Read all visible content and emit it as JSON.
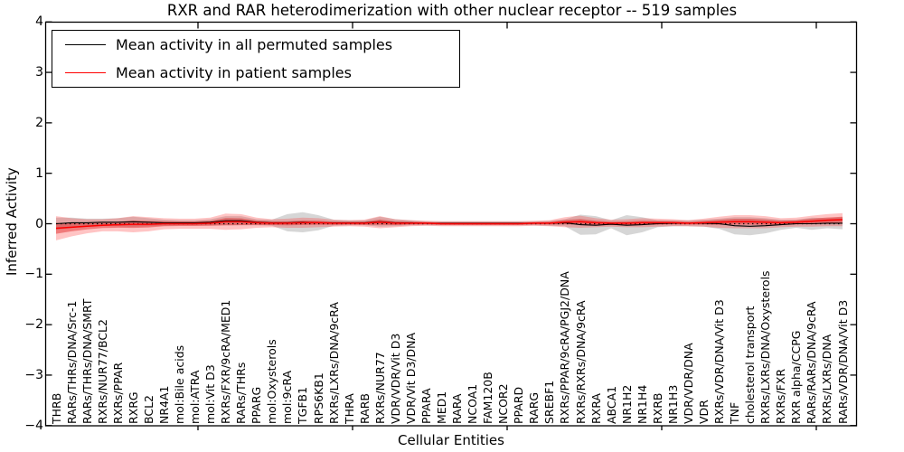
{
  "title": "RXR and RAR heterodimerization with other nuclear receptor -- 519 samples",
  "axes": {
    "ylabel": "Inferred Activity",
    "xlabel": "Cellular Entities",
    "y_tick_labels": [
      "4",
      "3",
      "2",
      "1",
      "0",
      "−1",
      "−2",
      "−3",
      "−4"
    ],
    "y_tick_values": [
      4,
      3,
      2,
      1,
      0,
      -1,
      -2,
      -3,
      -4
    ]
  },
  "legend": {
    "items": [
      {
        "label": "Mean activity in all permuted samples",
        "color": "#000000"
      },
      {
        "label": "Mean activity in patient samples",
        "color": "#ff0000"
      }
    ]
  },
  "chart_data": {
    "type": "line",
    "title": "RXR and RAR heterodimerization with other nuclear receptor -- 519 samples",
    "xlabel": "Cellular Entities",
    "ylabel": "Inferred Activity",
    "ylim": [
      -4,
      4
    ],
    "grid": false,
    "legend_position": "upper left",
    "zero_line_style": "dotted",
    "categories": [
      "THRB",
      "RARs/THRs/DNA/Src-1",
      "RARs/THRs/DNA/SMRT",
      "RXRs/NUR77/BCL2",
      "RXRs/PPAR",
      "RXRG",
      "BCL2",
      "NR4A1",
      "mol:Bile acids",
      "mol:ATRA",
      "mol:Vit D3",
      "RXRs/FXR/9cRA/MED1",
      "RARs/THRs",
      "PPARG",
      "mol:Oxysterols",
      "mol:9cRA",
      "TGFB1",
      "RPS6KB1",
      "RXRs/LXRs/DNA/9cRA",
      "THRA",
      "RARB",
      "RXRs/NUR77",
      "VDR/VDR/Vit D3",
      "VDR/Vit D3/DNA",
      "PPARA",
      "MED1",
      "RARA",
      "NCOA1",
      "FAM120B",
      "NCOR2",
      "PPARD",
      "RARG",
      "SREBF1",
      "RXRs/PPAR/9cRA/PGJ2/DNA",
      "RXRs/RXRs/DNA/9cRA",
      "RXRA",
      "ABCA1",
      "NR1H2",
      "NR1H4",
      "RXRB",
      "NR1H3",
      "VDR/VDR/DNA",
      "VDR",
      "RXRs/VDR/DNA/Vit D3",
      "TNF",
      "cholesterol transport",
      "RXRs/LXRs/DNA/Oxysterols",
      "RXRs/FXR",
      "RXR alpha/CCPG",
      "RARs/RARs/DNA/9cRA",
      "RXRs/LXRs/DNA",
      "RARs/VDR/DNA/Vit D3"
    ],
    "series": [
      {
        "name": "Mean activity in all permuted samples",
        "color": "#000000",
        "band_color": "#999999",
        "band_opacity": 0.4,
        "values": [
          0.0,
          0.02,
          0.02,
          0.03,
          0.03,
          0.04,
          0.03,
          0.02,
          0.02,
          0.02,
          0.03,
          0.06,
          0.06,
          0.03,
          0.02,
          0.02,
          0.03,
          0.02,
          0.02,
          0.02,
          0.02,
          0.04,
          0.02,
          0.02,
          0.01,
          0.01,
          0.01,
          0.01,
          0.01,
          0.01,
          0.01,
          0.01,
          0.01,
          0.02,
          -0.02,
          -0.03,
          -0.01,
          -0.03,
          -0.02,
          0.0,
          0.01,
          0.01,
          0.01,
          0.0,
          -0.04,
          -0.05,
          -0.04,
          -0.02,
          0.0,
          0.0,
          0.01,
          0.01
        ],
        "std": [
          0.12,
          0.1,
          0.08,
          0.07,
          0.08,
          0.1,
          0.08,
          0.06,
          0.05,
          0.05,
          0.06,
          0.09,
          0.09,
          0.06,
          0.06,
          0.17,
          0.2,
          0.15,
          0.06,
          0.05,
          0.05,
          0.1,
          0.07,
          0.05,
          0.04,
          0.04,
          0.04,
          0.04,
          0.04,
          0.04,
          0.04,
          0.04,
          0.05,
          0.07,
          0.2,
          0.18,
          0.08,
          0.2,
          0.15,
          0.07,
          0.06,
          0.06,
          0.07,
          0.1,
          0.17,
          0.18,
          0.15,
          0.1,
          0.08,
          0.12,
          0.1,
          0.12
        ]
      },
      {
        "name": "Mean activity in patient samples",
        "color": "#ff0000",
        "band_color": "#ff2a2a",
        "band_opacity": 0.28,
        "values": [
          -0.09,
          -0.07,
          -0.05,
          -0.03,
          -0.02,
          -0.01,
          -0.01,
          0.0,
          0.0,
          0.0,
          0.01,
          0.04,
          0.04,
          0.02,
          0.01,
          0.01,
          0.02,
          0.02,
          0.01,
          0.01,
          0.01,
          0.03,
          0.01,
          0.01,
          0.01,
          0.0,
          0.0,
          0.0,
          0.0,
          0.0,
          0.0,
          0.01,
          0.01,
          0.03,
          0.04,
          0.02,
          0.01,
          0.01,
          0.02,
          0.02,
          0.02,
          0.01,
          0.02,
          0.03,
          0.04,
          0.04,
          0.03,
          0.02,
          0.03,
          0.05,
          0.07,
          0.08
        ],
        "std": [
          0.24,
          0.18,
          0.14,
          0.12,
          0.13,
          0.16,
          0.14,
          0.11,
          0.1,
          0.1,
          0.11,
          0.16,
          0.15,
          0.1,
          0.08,
          0.09,
          0.1,
          0.09,
          0.07,
          0.06,
          0.07,
          0.12,
          0.08,
          0.06,
          0.05,
          0.05,
          0.05,
          0.05,
          0.05,
          0.05,
          0.05,
          0.05,
          0.06,
          0.1,
          0.12,
          0.09,
          0.07,
          0.08,
          0.09,
          0.08,
          0.07,
          0.06,
          0.08,
          0.11,
          0.13,
          0.13,
          0.12,
          0.09,
          0.09,
          0.11,
          0.12,
          0.13
        ]
      }
    ]
  }
}
